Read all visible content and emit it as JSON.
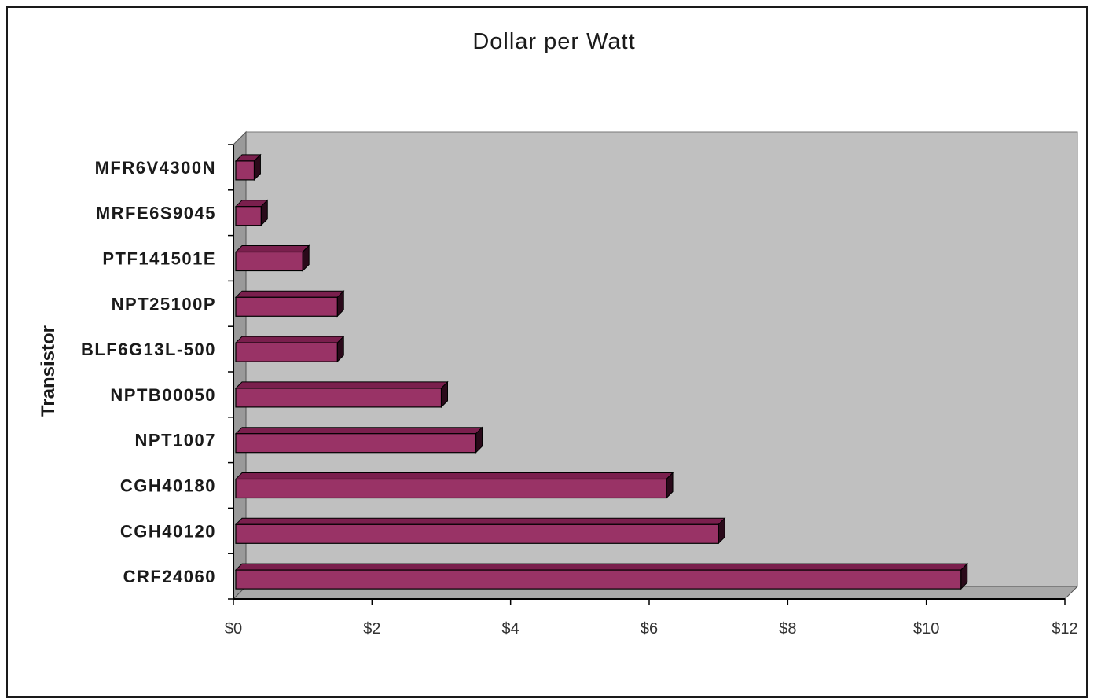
{
  "chart_data": {
    "type": "bar",
    "orientation": "horizontal",
    "title": "Dollar per Watt",
    "xlabel": "",
    "ylabel": "Transistor",
    "categories": [
      "MFR6V4300N",
      "MRFE6S9045",
      "PTF141501E",
      "NPT25100P",
      "BLF6G13L-500",
      "NPTB00050",
      "NPT1007",
      "CGH40180",
      "CGH40120",
      "CRF24060"
    ],
    "values": [
      0.3,
      0.4,
      1.0,
      1.5,
      1.5,
      3.0,
      3.5,
      6.25,
      7.0,
      10.5
    ],
    "xlim": [
      0,
      12
    ],
    "x_ticks": [
      0,
      2,
      4,
      6,
      8,
      10,
      12
    ],
    "x_tick_labels": [
      "$0",
      "$2",
      "$4",
      "$6",
      "$8",
      "$10",
      "$12"
    ],
    "grid": false,
    "legend": "none",
    "colors": {
      "bar_face": "#993366",
      "bar_top": "#7a1f4d",
      "bar_side": "#2a0a1a",
      "plot_wall": "#c0c0c0",
      "plot_floor": "#a8a8a8"
    }
  }
}
